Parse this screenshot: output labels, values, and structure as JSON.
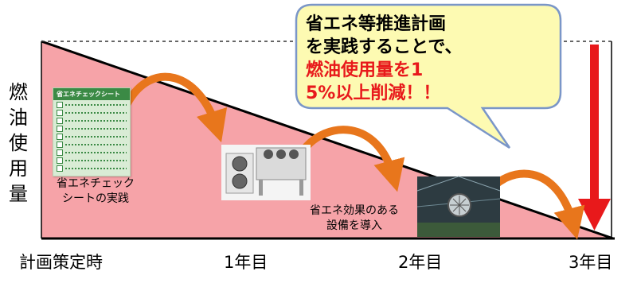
{
  "diagram": {
    "y_axis_label": "燃油使用量",
    "x_labels": [
      "計画策定時",
      "1年目",
      "2年目",
      "3年目"
    ],
    "callout": {
      "line1": "省エネ等推進計画",
      "line2": "を実践することで、",
      "line3_red": "燃油使用量を1",
      "line4_red": "5%以上削減！！"
    },
    "steps": [
      {
        "caption_line1": "省エネチェック",
        "caption_line2": "シートの実践",
        "sheet_title": "省エネチェックシート"
      },
      {
        "caption_line1": "省エネ効果のある",
        "caption_line2": "設備を導入"
      }
    ],
    "colors": {
      "triangle_fill": "#f6a3a8",
      "arrow_orange": "#e8761c",
      "reduction_arrow": "#e8191b",
      "callout_fill": "#fdfab2",
      "callout_border": "#7a96c8",
      "sheet_green": "#3b8a45"
    }
  }
}
